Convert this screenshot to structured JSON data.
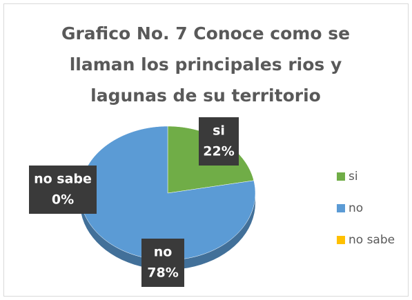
{
  "chart_data": {
    "type": "pie",
    "title": "Grafico No. 7 Conoce como se llaman los principales rios y lagunas de su territorio",
    "categories": [
      "si",
      "no",
      "no sabe"
    ],
    "values": [
      22,
      78,
      0
    ],
    "value_labels": [
      "22%",
      "78%",
      "0%"
    ],
    "colors": [
      "#70ad47",
      "#5b9bd5",
      "#ffc000"
    ],
    "legend": "right"
  }
}
